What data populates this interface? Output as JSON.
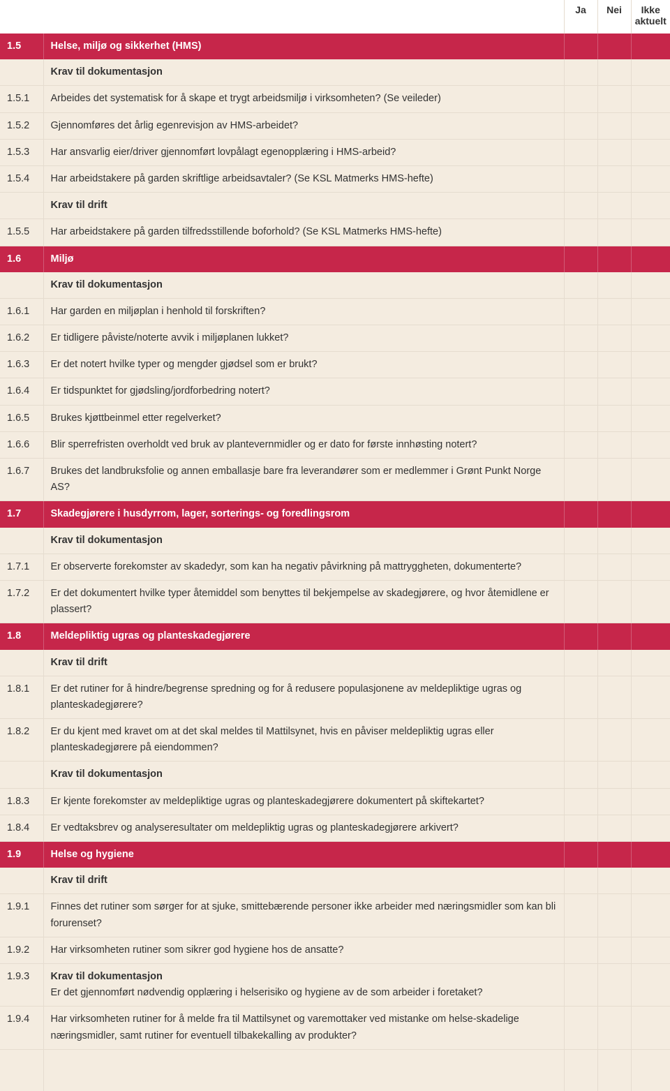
{
  "headers": {
    "ja": "Ja",
    "nei": "Nei",
    "ikke": "Ikke aktuelt"
  },
  "rows": [
    {
      "type": "section",
      "num": "1.5",
      "text": "Helse, miljø og sikkerhet (HMS)"
    },
    {
      "type": "label",
      "text": "Krav til dokumentasjon"
    },
    {
      "type": "item",
      "num": "1.5.1",
      "text": "Arbeides det systematisk for å skape et trygt arbeidsmiljø i virksomheten? (Se veileder)"
    },
    {
      "type": "item",
      "num": "1.5.2",
      "text": "Gjennomføres det årlig egenrevisjon av HMS-arbeidet?"
    },
    {
      "type": "item",
      "num": "1.5.3",
      "text": "Har ansvarlig eier/driver gjennomført lovpålagt egenopplæring i HMS-arbeid?"
    },
    {
      "type": "item",
      "num": "1.5.4",
      "text": "Har arbeidstakere på garden skriftlige arbeidsavtaler? (Se KSL Matmerks HMS-hefte)"
    },
    {
      "type": "label",
      "text": "Krav til drift"
    },
    {
      "type": "item",
      "num": "1.5.5",
      "text": "Har arbeidstakere på garden tilfredsstillende boforhold? (Se KSL Matmerks HMS-hefte)"
    },
    {
      "type": "section",
      "num": "1.6",
      "text": "Miljø"
    },
    {
      "type": "label",
      "text": "Krav til dokumentasjon"
    },
    {
      "type": "item",
      "num": "1.6.1",
      "text": "Har garden en miljøplan i henhold til forskriften?"
    },
    {
      "type": "item",
      "num": "1.6.2",
      "text": "Er tidligere påviste/noterte avvik i miljøplanen lukket?"
    },
    {
      "type": "item",
      "num": "1.6.3",
      "text": "Er det notert hvilke typer og mengder gjødsel som er brukt?"
    },
    {
      "type": "item",
      "num": "1.6.4",
      "text": "Er tidspunktet for gjødsling/jordforbedring notert?"
    },
    {
      "type": "item",
      "num": "1.6.5",
      "text": "Brukes kjøttbeinmel etter regelverket?"
    },
    {
      "type": "item",
      "num": "1.6.6",
      "text": "Blir sperrefristen overholdt ved bruk av plantevernmidler og er dato for første innhøsting notert?"
    },
    {
      "type": "item",
      "num": "1.6.7",
      "text": "Brukes det landbruksfolie og annen emballasje bare fra leverandører som er medlemmer i Grønt Punkt Norge AS?"
    },
    {
      "type": "section",
      "num": "1.7",
      "text": "Skadegjørere i husdyrrom, lager, sorterings- og foredlingsrom"
    },
    {
      "type": "label",
      "text": "Krav til dokumentasjon"
    },
    {
      "type": "item",
      "num": "1.7.1",
      "text": "Er observerte forekomster av skadedyr, som kan ha negativ påvirkning på mattryggheten, dokumenterte?"
    },
    {
      "type": "item",
      "num": "1.7.2",
      "text": "Er det dokumentert hvilke typer åtemiddel som benyttes til bekjempelse av skadegjørere, og hvor åtemidlene er plassert?"
    },
    {
      "type": "section",
      "num": "1.8",
      "text": "Meldepliktig ugras og planteskadegjørere"
    },
    {
      "type": "label",
      "text": "Krav til drift"
    },
    {
      "type": "item",
      "num": "1.8.1",
      "text": "Er det rutiner for å hindre/begrense spredning og for å redusere populasjonene av meldepliktige ugras og planteskadegjørere?"
    },
    {
      "type": "item",
      "num": "1.8.2",
      "text": "Er du kjent med kravet om at det skal meldes til Mattilsynet, hvis en påviser meldepliktig ugras eller planteskadegjørere på eiendommen?"
    },
    {
      "type": "label",
      "text": "Krav til dokumentasjon"
    },
    {
      "type": "item",
      "num": "1.8.3",
      "text": "Er kjente forekomster av meldepliktige ugras og planteskadegjørere dokumentert på skiftekartet?"
    },
    {
      "type": "item",
      "num": "1.8.4",
      "text": "Er vedtaksbrev og analyseresultater om meldepliktig ugras og planteskadegjørere arkivert?"
    },
    {
      "type": "section",
      "num": "1.9",
      "text": "Helse og hygiene"
    },
    {
      "type": "label",
      "text": "Krav til drift"
    },
    {
      "type": "item",
      "num": "1.9.1",
      "text": "Finnes det rutiner som sørger for at sjuke, smittebærende personer ikke arbeider med næringsmidler som kan bli forurenset?"
    },
    {
      "type": "item",
      "num": "1.9.2",
      "text": "Har virksomheten rutiner som sikrer god hygiene hos de ansatte?"
    },
    {
      "type": "label-item",
      "num": "1.9.3",
      "label": "Krav til dokumentasjon",
      "text": "Er det gjennomført nødvendig opplæring i helserisiko og hygiene av de som arbeider i foretaket?"
    },
    {
      "type": "item",
      "num": "1.9.4",
      "text": "Har virksomheten rutiner for å melde fra til Mattilsynet og varemottaker ved mistanke om helse-skadelige næringsmidler, samt rutiner for eventuell tilbakekalling av produkter?"
    },
    {
      "type": "filler"
    }
  ]
}
